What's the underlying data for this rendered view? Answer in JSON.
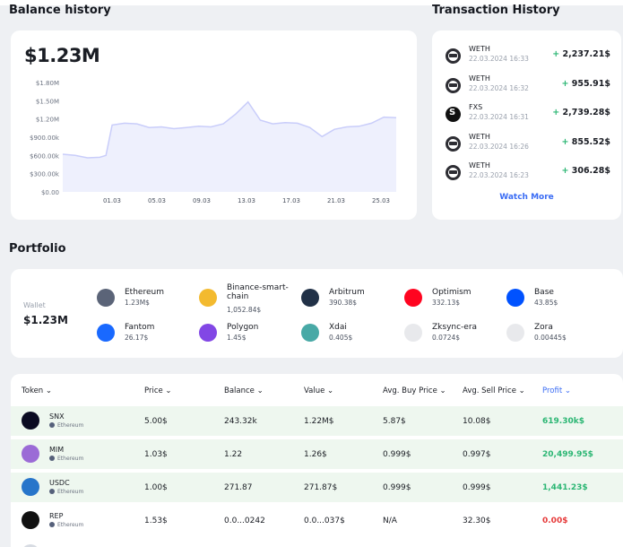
{
  "balance": {
    "title": "Balance history",
    "total": "$1.23M",
    "chart_data": {
      "type": "area",
      "y_ticks": [
        "$1.80M",
        "$1.50M",
        "$1.20M",
        "$900.00k",
        "$600.00k",
        "$300.00k",
        "$0.00"
      ],
      "x_ticks": [
        "01.03",
        "05.03",
        "09.03",
        "13.03",
        "17.03",
        "21.03",
        "25.03"
      ],
      "ylim": [
        0,
        1800000
      ],
      "x": [
        0,
        1,
        2,
        3,
        3.5,
        4,
        5,
        6,
        7,
        8,
        9,
        10,
        11,
        12,
        13,
        14,
        15,
        16,
        17,
        18,
        19,
        20,
        21,
        22,
        23,
        24,
        25,
        26,
        27
      ],
      "values": [
        620000,
        600000,
        560000,
        570000,
        600000,
        1100000,
        1130000,
        1120000,
        1060000,
        1070000,
        1040000,
        1060000,
        1080000,
        1070000,
        1120000,
        1280000,
        1480000,
        1180000,
        1120000,
        1140000,
        1130000,
        1060000,
        910000,
        1030000,
        1070000,
        1080000,
        1130000,
        1230000,
        1220000
      ],
      "color": "#c9cdfa",
      "fill": "#eef0fd"
    }
  },
  "transactions": {
    "title": "Transaction History",
    "items": [
      {
        "token": "WETH",
        "time": "22.03.2024 16:33",
        "amount": "2,237.21$",
        "sign": "+",
        "icon": "weth-icon"
      },
      {
        "token": "WETH",
        "time": "22.03.2024 16:32",
        "amount": "955.91$",
        "sign": "+",
        "icon": "weth-icon"
      },
      {
        "token": "FXS",
        "time": "22.03.2024 16:31",
        "amount": "2,739.28$",
        "sign": "+",
        "icon": "fxs-icon"
      },
      {
        "token": "WETH",
        "time": "22.03.2024 16:26",
        "amount": "855.52$",
        "sign": "+",
        "icon": "weth-icon"
      },
      {
        "token": "WETH",
        "time": "22.03.2024 16:23",
        "amount": "306.28$",
        "sign": "+",
        "icon": "weth-icon"
      }
    ],
    "watch_more": "Watch More"
  },
  "portfolio": {
    "title": "Portfolio",
    "wallet_label": "Wallet",
    "wallet_value": "$1.23M",
    "chains": [
      {
        "name": "Ethereum",
        "value": "1.23M$",
        "icon": "ethereum-icon",
        "color": "#5b6478"
      },
      {
        "name": "Binance-smart-chain",
        "value": "1,052.84$",
        "icon": "bnb-icon",
        "color": "#f3ba2f"
      },
      {
        "name": "Arbitrum",
        "value": "390.38$",
        "icon": "arbitrum-icon",
        "color": "#213147"
      },
      {
        "name": "Optimism",
        "value": "332.13$",
        "icon": "optimism-icon",
        "color": "#ff0420"
      },
      {
        "name": "Base",
        "value": "43.85$",
        "icon": "base-icon",
        "color": "#0052ff"
      },
      {
        "name": "Fantom",
        "value": "26.17$",
        "icon": "fantom-icon",
        "color": "#1969ff"
      },
      {
        "name": "Polygon",
        "value": "1.45$",
        "icon": "polygon-icon",
        "color": "#8247e5"
      },
      {
        "name": "Xdai",
        "value": "0.405$",
        "icon": "xdai-icon",
        "color": "#48a9a6"
      },
      {
        "name": "Zksync-era",
        "value": "0.0724$",
        "icon": "zksync-icon",
        "color": "#e8e9ec"
      },
      {
        "name": "Zora",
        "value": "0.00445$",
        "icon": "zora-icon",
        "color": "#e8e9ec"
      }
    ]
  },
  "table": {
    "headers": [
      "Token",
      "Price",
      "Balance",
      "Value",
      "Avg. Buy Price",
      "Avg. Sell Price",
      "Profit"
    ],
    "rows": [
      {
        "symbol": "SNX",
        "chain": "Ethereum",
        "price": "5.00$",
        "balance": "243.32k",
        "value": "1.22M$",
        "avg_buy": "5.87$",
        "avg_sell": "10.08$",
        "profit": "619.30k$",
        "profit_sign": "pos",
        "icon": "snx-icon",
        "color": "#0b0b22"
      },
      {
        "symbol": "MIM",
        "chain": "Ethereum",
        "price": "1.03$",
        "balance": "1.22",
        "value": "1.26$",
        "avg_buy": "0.999$",
        "avg_sell": "0.997$",
        "profit": "20,499.95$",
        "profit_sign": "pos",
        "icon": "mim-icon",
        "color": "#9b6bd6"
      },
      {
        "symbol": "USDC",
        "chain": "Ethereum",
        "price": "1.00$",
        "balance": "271.87",
        "value": "271.87$",
        "avg_buy": "0.999$",
        "avg_sell": "0.999$",
        "profit": "1,441.23$",
        "profit_sign": "pos",
        "icon": "usdc-icon",
        "color": "#2775ca"
      },
      {
        "symbol": "REP",
        "chain": "Ethereum",
        "price": "1.53$",
        "balance": "0.0...0242",
        "value": "0.0...037$",
        "avg_buy": "N/A",
        "avg_sell": "32.30$",
        "profit": "0.00$",
        "profit_sign": "neg",
        "icon": "rep-icon",
        "color": "#111"
      }
    ]
  }
}
